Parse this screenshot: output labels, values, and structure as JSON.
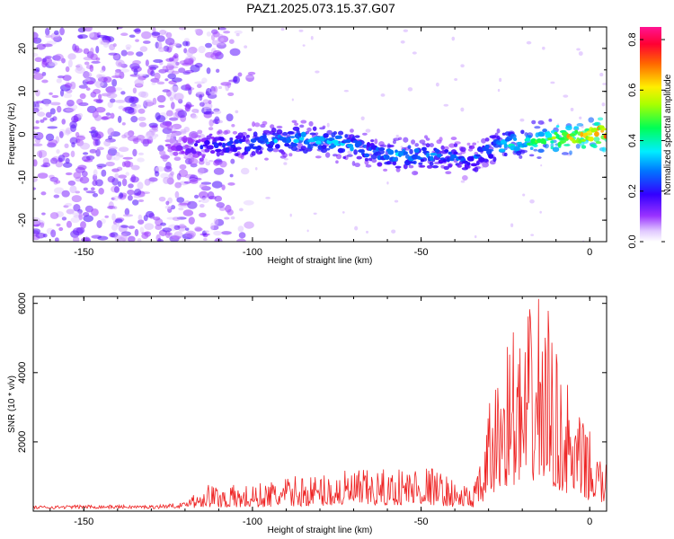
{
  "title": "PAZ1.2025.073.15.37.G07",
  "colors": {
    "signal_line": "#ee2222",
    "axis": "#000000",
    "background": "#ffffff"
  },
  "chart_data": [
    {
      "type": "heatmap",
      "title": "PAZ1.2025.073.15.37.G07",
      "xlabel": "Height of straight line (km)",
      "ylabel": "Frequency (Hz)",
      "xlim": [
        -165,
        5
      ],
      "ylim": [
        -25,
        25
      ],
      "x_ticks": [
        -150,
        -100,
        -50,
        0
      ],
      "y_ticks": [
        -20,
        -10,
        0,
        10,
        20
      ],
      "colormap": "rainbow (white-violet-blue-cyan-green-yellow-red-magenta)",
      "colorbar": {
        "label": "Normalized spectral amplitude",
        "range": [
          0.0,
          0.85
        ],
        "ticks": [
          0.0,
          0.2,
          0.4,
          0.6,
          0.8
        ]
      },
      "ridge": {
        "x": [
          -165,
          -150,
          -125,
          -115,
          -100,
          -85,
          -75,
          -65,
          -55,
          -45,
          -35,
          -28,
          -20,
          -10,
          0,
          5
        ],
        "y": [
          0,
          -2,
          -3,
          -3,
          -2,
          -1,
          -2,
          -4,
          -5,
          -5,
          -6,
          -3,
          -2,
          -1,
          0,
          0.5
        ],
        "peak_amplitude": [
          0.05,
          0.07,
          0.1,
          0.2,
          0.3,
          0.35,
          0.35,
          0.3,
          0.35,
          0.3,
          0.25,
          0.35,
          0.45,
          0.6,
          0.8,
          0.85
        ]
      },
      "noise_region_x": [
        -165,
        -118
      ]
    },
    {
      "type": "line",
      "xlabel": "Height of straight line (km)",
      "ylabel": "SNR (10 * v/v)",
      "xlim": [
        -165,
        5
      ],
      "ylim": [
        0,
        6200
      ],
      "x_ticks": [
        -150,
        -100,
        -50,
        0
      ],
      "y_ticks": [
        2000,
        4000,
        6000
      ],
      "series": [
        {
          "x": [
            -165,
            -150,
            -130,
            -120,
            -115,
            -110,
            -100,
            -90,
            -80,
            -70,
            -60,
            -50,
            -45,
            -40,
            -35,
            -32,
            -30,
            -27,
            -25,
            -22,
            -20,
            -18,
            -15,
            -12,
            -10,
            -7,
            -5,
            -2,
            0,
            5
          ],
          "y": [
            150,
            180,
            170,
            250,
            800,
            700,
            700,
            900,
            1000,
            1100,
            1100,
            1300,
            1100,
            800,
            650,
            1300,
            2800,
            3800,
            4800,
            5000,
            4500,
            5300,
            6000,
            5400,
            4200,
            3500,
            2800,
            2400,
            2100,
            1200
          ]
        }
      ]
    }
  ]
}
